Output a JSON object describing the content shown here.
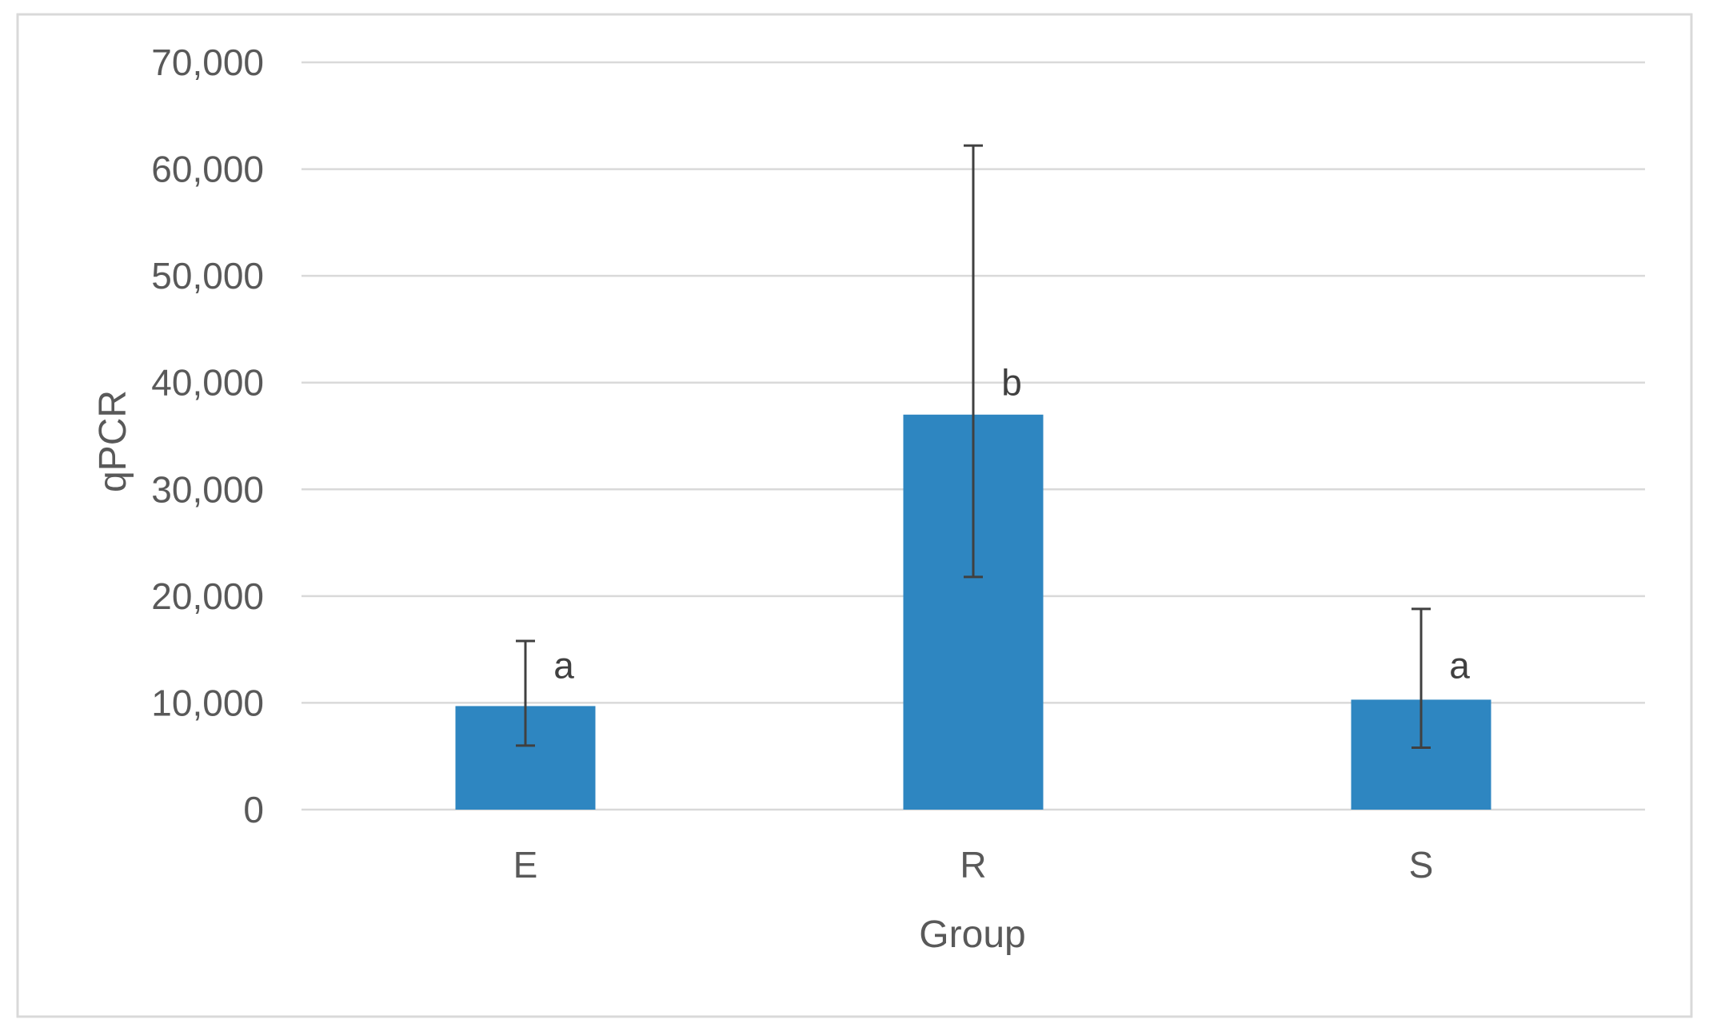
{
  "chart_data": {
    "type": "bar",
    "categories": [
      "E",
      "R",
      "S"
    ],
    "values": [
      9700,
      37000,
      10300
    ],
    "error_bars": [
      {
        "low": 6000,
        "high": 15800
      },
      {
        "low": 21800,
        "high": 62200
      },
      {
        "low": 5800,
        "high": 18800
      }
    ],
    "significance_labels": [
      "a",
      "b",
      "a"
    ],
    "xlabel": "Group",
    "ylabel": "qPCR",
    "ylim": [
      0,
      70000
    ],
    "yticks": [
      0,
      10000,
      20000,
      30000,
      40000,
      50000,
      60000,
      70000
    ],
    "ytick_labels": [
      "0",
      "10,000",
      "20,000",
      "30,000",
      "40,000",
      "50,000",
      "60,000",
      "70,000"
    ],
    "grid": true,
    "legend": false,
    "colors": {
      "bar": "#2e86c1",
      "error_bar": "#404040",
      "grid": "#d9d9d9",
      "text": "#595959",
      "border": "#d9d9d9"
    }
  }
}
